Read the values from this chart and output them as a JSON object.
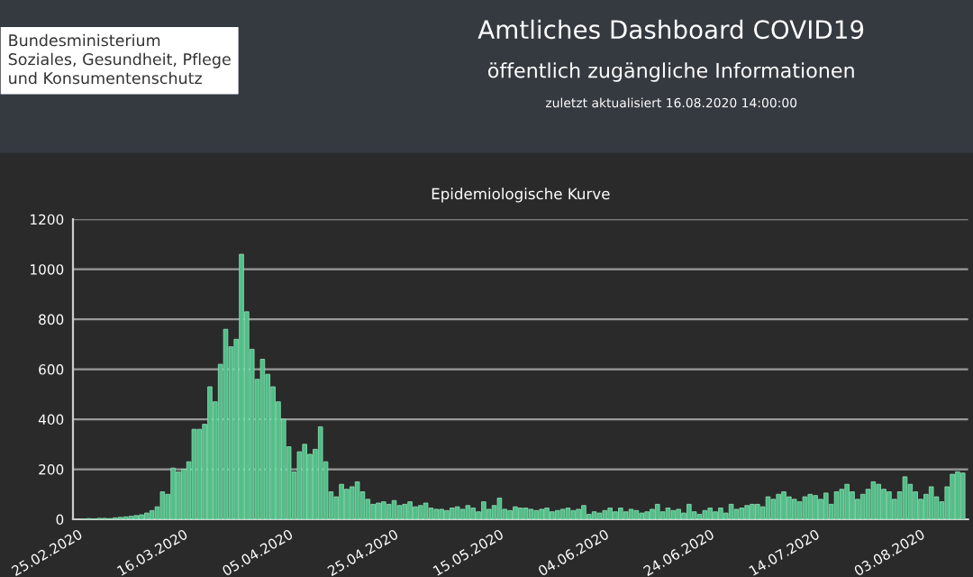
{
  "chart_data": {
    "type": "bar",
    "title": "Amtliches Dashboard COVID19",
    "subtitle": "öffentlich zugängliche Informationen",
    "annotations": [
      "zuletzt aktualisiert 16.08.2020 14:00:00",
      "Bundesministerium\nSoziales, Gesundheit, Pflege\nund Konsumentenschutz",
      "Epidemiologische Kurve"
    ],
    "x": [
      "2020-02-26",
      "2020-02-27",
      "2020-02-28",
      "2020-02-29",
      "2020-03-01",
      "2020-03-02",
      "2020-03-03",
      "2020-03-04",
      "2020-03-05",
      "2020-03-06",
      "2020-03-07",
      "2020-03-08",
      "2020-03-09",
      "2020-03-10",
      "2020-03-11",
      "2020-03-12",
      "2020-03-13",
      "2020-03-14",
      "2020-03-15",
      "2020-03-16",
      "2020-03-17",
      "2020-03-18",
      "2020-03-19",
      "2020-03-20",
      "2020-03-21",
      "2020-03-22",
      "2020-03-23",
      "2020-03-24",
      "2020-03-25",
      "2020-03-26",
      "2020-03-27",
      "2020-03-28",
      "2020-03-29",
      "2020-03-30",
      "2020-03-31",
      "2020-04-01",
      "2020-04-02",
      "2020-04-03",
      "2020-04-04",
      "2020-04-05",
      "2020-04-06",
      "2020-04-07",
      "2020-04-08",
      "2020-04-09",
      "2020-04-10",
      "2020-04-11",
      "2020-04-12",
      "2020-04-13",
      "2020-04-14",
      "2020-04-15",
      "2020-04-16",
      "2020-04-17",
      "2020-04-18",
      "2020-04-19",
      "2020-04-20",
      "2020-04-21",
      "2020-04-22",
      "2020-04-23",
      "2020-04-24",
      "2020-04-25",
      "2020-04-26",
      "2020-04-27",
      "2020-04-28",
      "2020-04-29",
      "2020-04-30",
      "2020-05-01",
      "2020-05-02",
      "2020-05-03",
      "2020-05-04",
      "2020-05-05",
      "2020-05-06",
      "2020-05-07",
      "2020-05-08",
      "2020-05-09",
      "2020-05-10",
      "2020-05-11",
      "2020-05-12",
      "2020-05-13",
      "2020-05-14",
      "2020-05-15",
      "2020-05-16",
      "2020-05-17",
      "2020-05-18",
      "2020-05-19",
      "2020-05-20",
      "2020-05-21",
      "2020-05-22",
      "2020-05-23",
      "2020-05-24",
      "2020-05-25",
      "2020-05-26",
      "2020-05-27",
      "2020-05-28",
      "2020-05-29",
      "2020-05-30",
      "2020-05-31",
      "2020-06-01",
      "2020-06-02",
      "2020-06-03",
      "2020-06-04",
      "2020-06-05",
      "2020-06-06",
      "2020-06-07",
      "2020-06-08",
      "2020-06-09",
      "2020-06-10",
      "2020-06-11",
      "2020-06-12",
      "2020-06-13",
      "2020-06-14",
      "2020-06-15",
      "2020-06-16",
      "2020-06-17",
      "2020-06-18",
      "2020-06-19",
      "2020-06-20",
      "2020-06-21",
      "2020-06-22",
      "2020-06-23",
      "2020-06-24",
      "2020-06-25",
      "2020-06-26",
      "2020-06-27",
      "2020-06-28",
      "2020-06-29",
      "2020-06-30",
      "2020-07-01",
      "2020-07-02",
      "2020-07-03",
      "2020-07-04",
      "2020-07-05",
      "2020-07-06",
      "2020-07-07",
      "2020-07-08",
      "2020-07-09",
      "2020-07-10",
      "2020-07-11",
      "2020-07-12",
      "2020-07-13",
      "2020-07-14",
      "2020-07-15",
      "2020-07-16",
      "2020-07-17",
      "2020-07-18",
      "2020-07-19",
      "2020-07-20",
      "2020-07-21",
      "2020-07-22",
      "2020-07-23",
      "2020-07-24",
      "2020-07-25",
      "2020-07-26",
      "2020-07-27",
      "2020-07-28",
      "2020-07-29",
      "2020-07-30",
      "2020-07-31",
      "2020-08-01",
      "2020-08-02",
      "2020-08-03",
      "2020-08-04",
      "2020-08-05",
      "2020-08-06",
      "2020-08-07",
      "2020-08-08",
      "2020-08-09",
      "2020-08-10",
      "2020-08-11"
    ],
    "values": [
      2,
      3,
      2,
      4,
      4,
      3,
      6,
      8,
      10,
      12,
      15,
      18,
      25,
      35,
      50,
      110,
      100,
      205,
      190,
      200,
      230,
      360,
      360,
      380,
      530,
      470,
      620,
      760,
      690,
      720,
      1060,
      830,
      680,
      560,
      640,
      580,
      530,
      470,
      400,
      290,
      190,
      270,
      300,
      260,
      280,
      370,
      230,
      110,
      90,
      140,
      120,
      130,
      150,
      110,
      80,
      60,
      65,
      70,
      60,
      75,
      55,
      60,
      70,
      50,
      55,
      65,
      45,
      40,
      40,
      35,
      45,
      50,
      40,
      55,
      45,
      30,
      70,
      40,
      55,
      85,
      40,
      35,
      50,
      45,
      45,
      40,
      35,
      40,
      45,
      30,
      35,
      40,
      45,
      35,
      40,
      55,
      20,
      30,
      25,
      35,
      45,
      30,
      45,
      30,
      40,
      35,
      25,
      30,
      40,
      60,
      30,
      45,
      35,
      40,
      25,
      60,
      30,
      20,
      35,
      45,
      30,
      45,
      25,
      60,
      40,
      45,
      55,
      60,
      60,
      50,
      90,
      80,
      100,
      110,
      90,
      80,
      70,
      90,
      100,
      95,
      80,
      105,
      60,
      110,
      120,
      140,
      110,
      80,
      100,
      120,
      150,
      140,
      120,
      110,
      80,
      110,
      170,
      140,
      110,
      80,
      100,
      130,
      90,
      70,
      130,
      180,
      190,
      185
    ],
    "color": "#4fbf88",
    "xlim": [
      "2020-02-24",
      "2020-08-12"
    ],
    "xticks": [
      {
        "value": "2020-02-25",
        "label": "25.02.2020"
      },
      {
        "value": "2020-03-16",
        "label": "16.03.2020"
      },
      {
        "value": "2020-04-05",
        "label": "05.04.2020"
      },
      {
        "value": "2020-04-25",
        "label": "25.04.2020"
      },
      {
        "value": "2020-05-15",
        "label": "15.05.2020"
      },
      {
        "value": "2020-06-04",
        "label": "04.06.2020"
      },
      {
        "value": "2020-06-24",
        "label": "24.06.2020"
      },
      {
        "value": "2020-07-14",
        "label": "14.07.2020"
      },
      {
        "value": "2020-08-03",
        "label": "03.08.2020"
      }
    ],
    "ylim": [
      0,
      1200
    ],
    "yticks": [
      0,
      200,
      400,
      600,
      800,
      1000,
      1200
    ],
    "grid": "y"
  }
}
